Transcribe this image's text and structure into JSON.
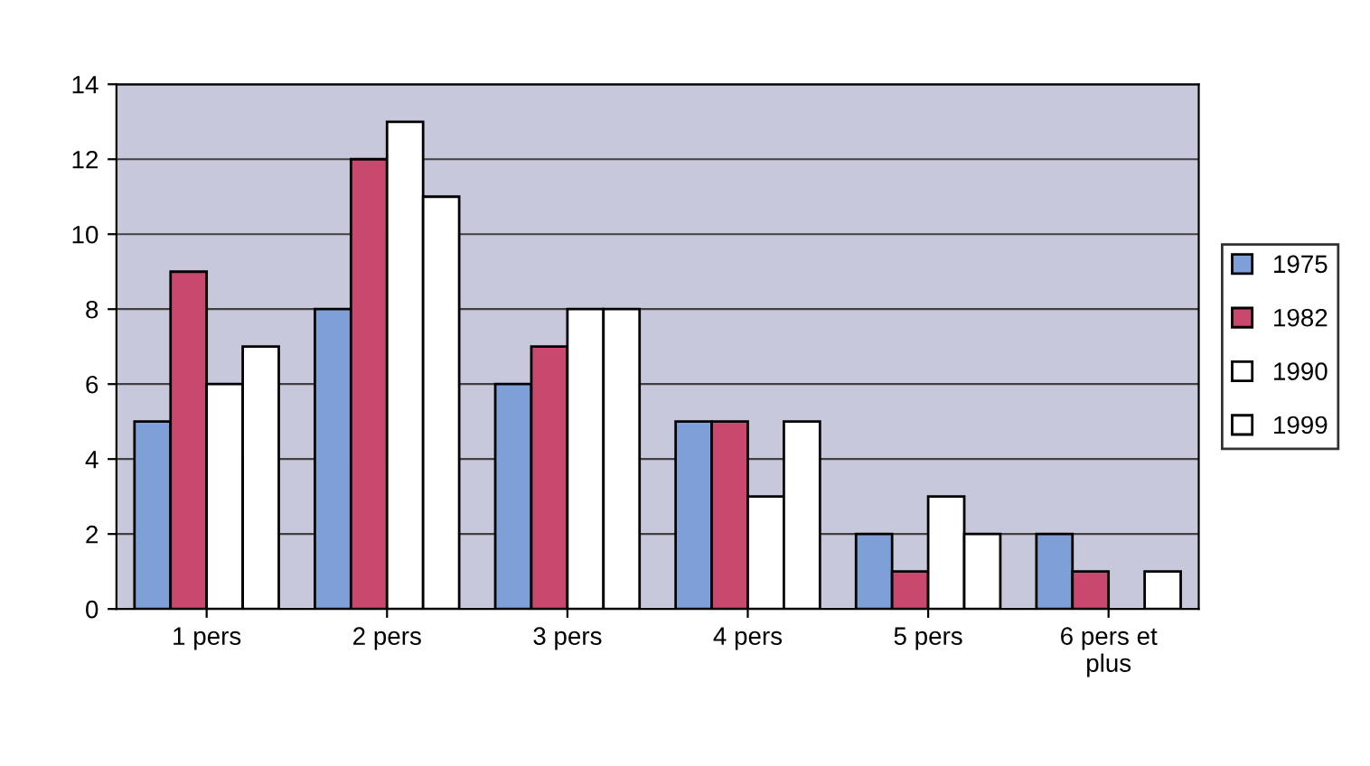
{
  "chart_data": {
    "type": "bar",
    "categories": [
      "1 pers",
      "2 pers",
      "3 pers",
      "4 pers",
      "5 pers",
      "6 pers et\nplus"
    ],
    "series": [
      {
        "name": "1975",
        "color": "#7f9fd8",
        "values": [
          5,
          8,
          6,
          5,
          2,
          2
        ]
      },
      {
        "name": "1982",
        "color": "#c8486e",
        "values": [
          9,
          12,
          7,
          5,
          1,
          1
        ]
      },
      {
        "name": "1990",
        "color": "#ffffff",
        "values": [
          6,
          13,
          8,
          3,
          3,
          null
        ]
      },
      {
        "name": "1999",
        "color": "#ffffff",
        "values": [
          7,
          11,
          8,
          5,
          2,
          1
        ]
      }
    ],
    "ylim": [
      0,
      14
    ],
    "yticks": [
      0,
      2,
      4,
      6,
      8,
      10,
      12,
      14
    ],
    "grid": "y",
    "legend": "right"
  }
}
